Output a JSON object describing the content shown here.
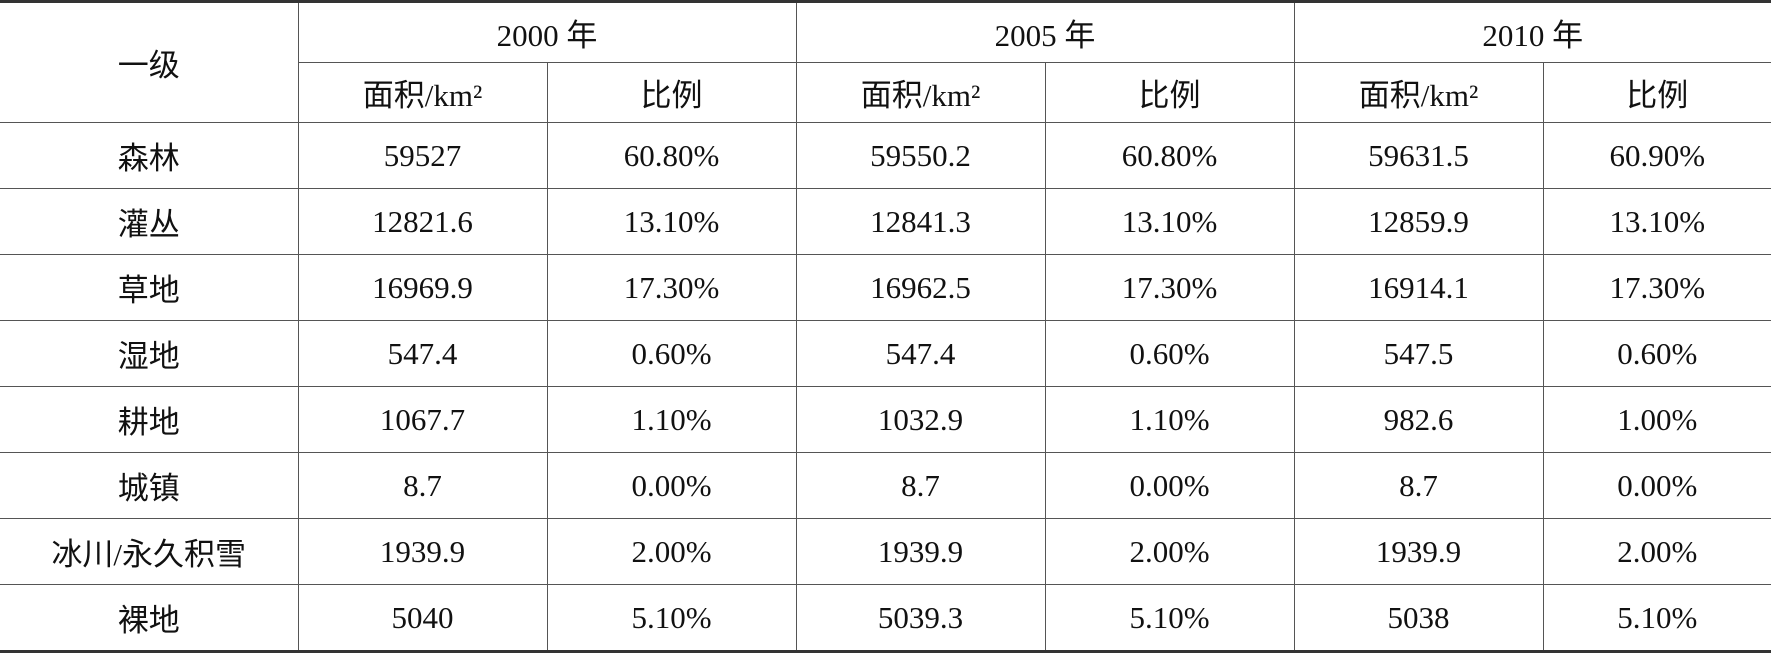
{
  "table": {
    "header": {
      "corner": "一级",
      "years": [
        "2000 年",
        "2005 年",
        "2010 年"
      ],
      "subheaders": [
        "面积/km²",
        "比例",
        "面积/km²",
        "比例",
        "面积/km²",
        "比例"
      ]
    },
    "rows": [
      [
        "森林",
        "59527",
        "60.80%",
        "59550.2",
        "60.80%",
        "59631.5",
        "60.90%"
      ],
      [
        "灌丛",
        "12821.6",
        "13.10%",
        "12841.3",
        "13.10%",
        "12859.9",
        "13.10%"
      ],
      [
        "草地",
        "16969.9",
        "17.30%",
        "16962.5",
        "17.30%",
        "16914.1",
        "17.30%"
      ],
      [
        "湿地",
        "547.4",
        "0.60%",
        "547.4",
        "0.60%",
        "547.5",
        "0.60%"
      ],
      [
        "耕地",
        "1067.7",
        "1.10%",
        "1032.9",
        "1.10%",
        "982.6",
        "1.00%"
      ],
      [
        "城镇",
        "8.7",
        "0.00%",
        "8.7",
        "0.00%",
        "8.7",
        "0.00%"
      ],
      [
        "冰川/永久积雪",
        "1939.9",
        "2.00%",
        "1939.9",
        "2.00%",
        "1939.9",
        "2.00%"
      ],
      [
        "裸地",
        "5040",
        "5.10%",
        "5039.3",
        "5.10%",
        "5038",
        "5.10%"
      ]
    ]
  }
}
